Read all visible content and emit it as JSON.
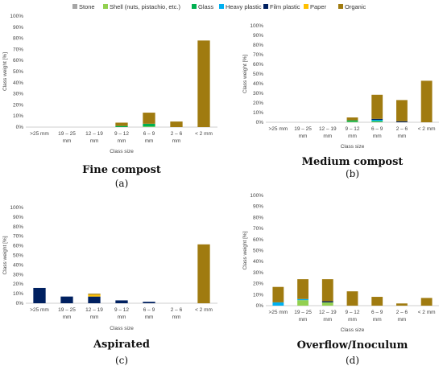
{
  "legend": {
    "items": [
      {
        "name": "Stone",
        "color": "#a6a6a6"
      },
      {
        "name": "Shell (nuts, pistachio, etc.)",
        "color": "#92d050"
      },
      {
        "name": "Glass",
        "color": "#00b050"
      },
      {
        "name": "Heavy plastic",
        "color": "#00b0f0"
      },
      {
        "name": "Film plastic",
        "color": "#002060"
      },
      {
        "name": "Paper",
        "color": "#ffc000"
      },
      {
        "name": "Organic",
        "color": "#a07b10"
      }
    ]
  },
  "chart_data": [
    {
      "type": "bar",
      "stacked": true,
      "title": "Fine compost",
      "panel": "(a)",
      "xlabel": "Class size",
      "ylabel": "Class weight [%]",
      "ylim": [
        0,
        100
      ],
      "yticks": [
        "0%",
        "10%",
        "20%",
        "30%",
        "40%",
        "50%",
        "60%",
        "70%",
        "80%",
        "90%",
        "100%"
      ],
      "categories": [
        ">25 mm",
        "19 – 25 mm",
        "12 – 19 mm",
        "9 – 12 mm",
        "6 – 9 mm",
        "2 – 6 mm",
        "< 2 mm"
      ],
      "series": [
        {
          "name": "Stone",
          "values": [
            0,
            0,
            0,
            0,
            0,
            0,
            0
          ]
        },
        {
          "name": "Shell (nuts, pistachio, etc.)",
          "values": [
            0,
            0,
            0,
            0,
            0.5,
            0,
            0
          ]
        },
        {
          "name": "Glass",
          "values": [
            0,
            0,
            0,
            1,
            2.5,
            0,
            0
          ]
        },
        {
          "name": "Heavy plastic",
          "values": [
            0,
            0,
            0,
            0,
            0,
            0,
            0
          ]
        },
        {
          "name": "Film plastic",
          "values": [
            0,
            0,
            0,
            0,
            0,
            0,
            0
          ]
        },
        {
          "name": "Paper",
          "values": [
            0,
            0,
            0,
            0,
            0,
            0,
            0
          ]
        },
        {
          "name": "Organic",
          "values": [
            0,
            0,
            0,
            3,
            10,
            5,
            78
          ]
        }
      ]
    },
    {
      "type": "bar",
      "stacked": true,
      "title": "Medium compost",
      "panel": "(b)",
      "xlabel": "Class size",
      "ylabel": "Class weight [%]",
      "ylim": [
        0,
        100
      ],
      "yticks": [
        "0%",
        "10%",
        "20%",
        "30%",
        "40%",
        "50%",
        "60%",
        "70%",
        "80%",
        "90%",
        "100%"
      ],
      "categories": [
        ">25 mm",
        "19 – 25 mm",
        "12 – 19 mm",
        "9 – 12 mm",
        "6 – 9 mm",
        "2 – 6 mm",
        "< 2 mm"
      ],
      "series": [
        {
          "name": "Stone",
          "values": [
            0,
            0,
            0,
            0,
            0,
            0,
            0
          ]
        },
        {
          "name": "Shell (nuts, pistachio, etc.)",
          "values": [
            0,
            0,
            0,
            0.5,
            0.5,
            0,
            0
          ]
        },
        {
          "name": "Glass",
          "values": [
            0,
            0,
            0,
            1.5,
            1,
            0,
            0
          ]
        },
        {
          "name": "Heavy plastic",
          "values": [
            0,
            0,
            0,
            0,
            1,
            0,
            0
          ]
        },
        {
          "name": "Film plastic",
          "values": [
            0,
            0,
            0,
            0,
            1,
            1,
            0
          ]
        },
        {
          "name": "Paper",
          "values": [
            0,
            0,
            0,
            0,
            0,
            0,
            0
          ]
        },
        {
          "name": "Organic",
          "values": [
            0,
            0,
            0,
            3,
            25,
            22,
            43
          ]
        }
      ]
    },
    {
      "type": "bar",
      "stacked": true,
      "title": "Aspirated",
      "panel": "(c)",
      "xlabel": "Class size",
      "ylabel": "Class weight [%]",
      "ylim": [
        0,
        100
      ],
      "yticks": [
        "0%",
        "10%",
        "20%",
        "30%",
        "40%",
        "50%",
        "60%",
        "70%",
        "80%",
        "90%",
        "100%"
      ],
      "categories": [
        ">25 mm",
        "19 – 25 mm",
        "12 – 19 mm",
        "9 – 12 mm",
        "6 – 9 mm",
        "2 – 6 mm",
        "< 2 mm"
      ],
      "series": [
        {
          "name": "Stone",
          "values": [
            0,
            0,
            0,
            0,
            0,
            0,
            0
          ]
        },
        {
          "name": "Shell (nuts, pistachio, etc.)",
          "values": [
            0,
            0,
            0,
            0,
            0,
            0,
            0
          ]
        },
        {
          "name": "Glass",
          "values": [
            0,
            0,
            0,
            0,
            0,
            0,
            0
          ]
        },
        {
          "name": "Heavy plastic",
          "values": [
            0,
            0,
            0,
            0,
            0,
            0,
            0
          ]
        },
        {
          "name": "Film plastic",
          "values": [
            16,
            7,
            7,
            3,
            1.5,
            0,
            0
          ]
        },
        {
          "name": "Paper",
          "values": [
            0,
            0,
            2,
            0,
            0,
            0,
            0
          ]
        },
        {
          "name": "Organic",
          "values": [
            0,
            0,
            1,
            0,
            0,
            0,
            61.5
          ]
        }
      ]
    },
    {
      "type": "bar",
      "stacked": true,
      "title": "Overflow/Inoculum",
      "panel": "(d)",
      "xlabel": "Class size",
      "ylabel": "Class weight [%]",
      "ylim": [
        0,
        100
      ],
      "yticks": [
        "0%",
        "10%",
        "20%",
        "30%",
        "40%",
        "50%",
        "60%",
        "70%",
        "80%",
        "90%",
        "100%"
      ],
      "categories": [
        ">25 mm",
        "19 – 25 mm",
        "12 – 19 mm",
        "9 – 12 mm",
        "6 – 9 mm",
        "2 – 6 mm",
        "< 2 mm"
      ],
      "series": [
        {
          "name": "Stone",
          "values": [
            0,
            0,
            0,
            0,
            0,
            0,
            0
          ]
        },
        {
          "name": "Shell (nuts, pistachio, etc.)",
          "values": [
            0,
            5,
            3,
            0,
            0,
            0,
            0
          ]
        },
        {
          "name": "Glass",
          "values": [
            0,
            0,
            0,
            0,
            0,
            0,
            0
          ]
        },
        {
          "name": "Heavy plastic",
          "values": [
            3,
            1,
            0,
            0,
            0,
            0,
            0
          ]
        },
        {
          "name": "Film plastic",
          "values": [
            0,
            0,
            1,
            0,
            0,
            0,
            0
          ]
        },
        {
          "name": "Paper",
          "values": [
            0,
            0,
            0,
            0,
            0,
            0,
            0
          ]
        },
        {
          "name": "Organic",
          "values": [
            14,
            18,
            20,
            13,
            8,
            2,
            7
          ]
        }
      ]
    }
  ]
}
